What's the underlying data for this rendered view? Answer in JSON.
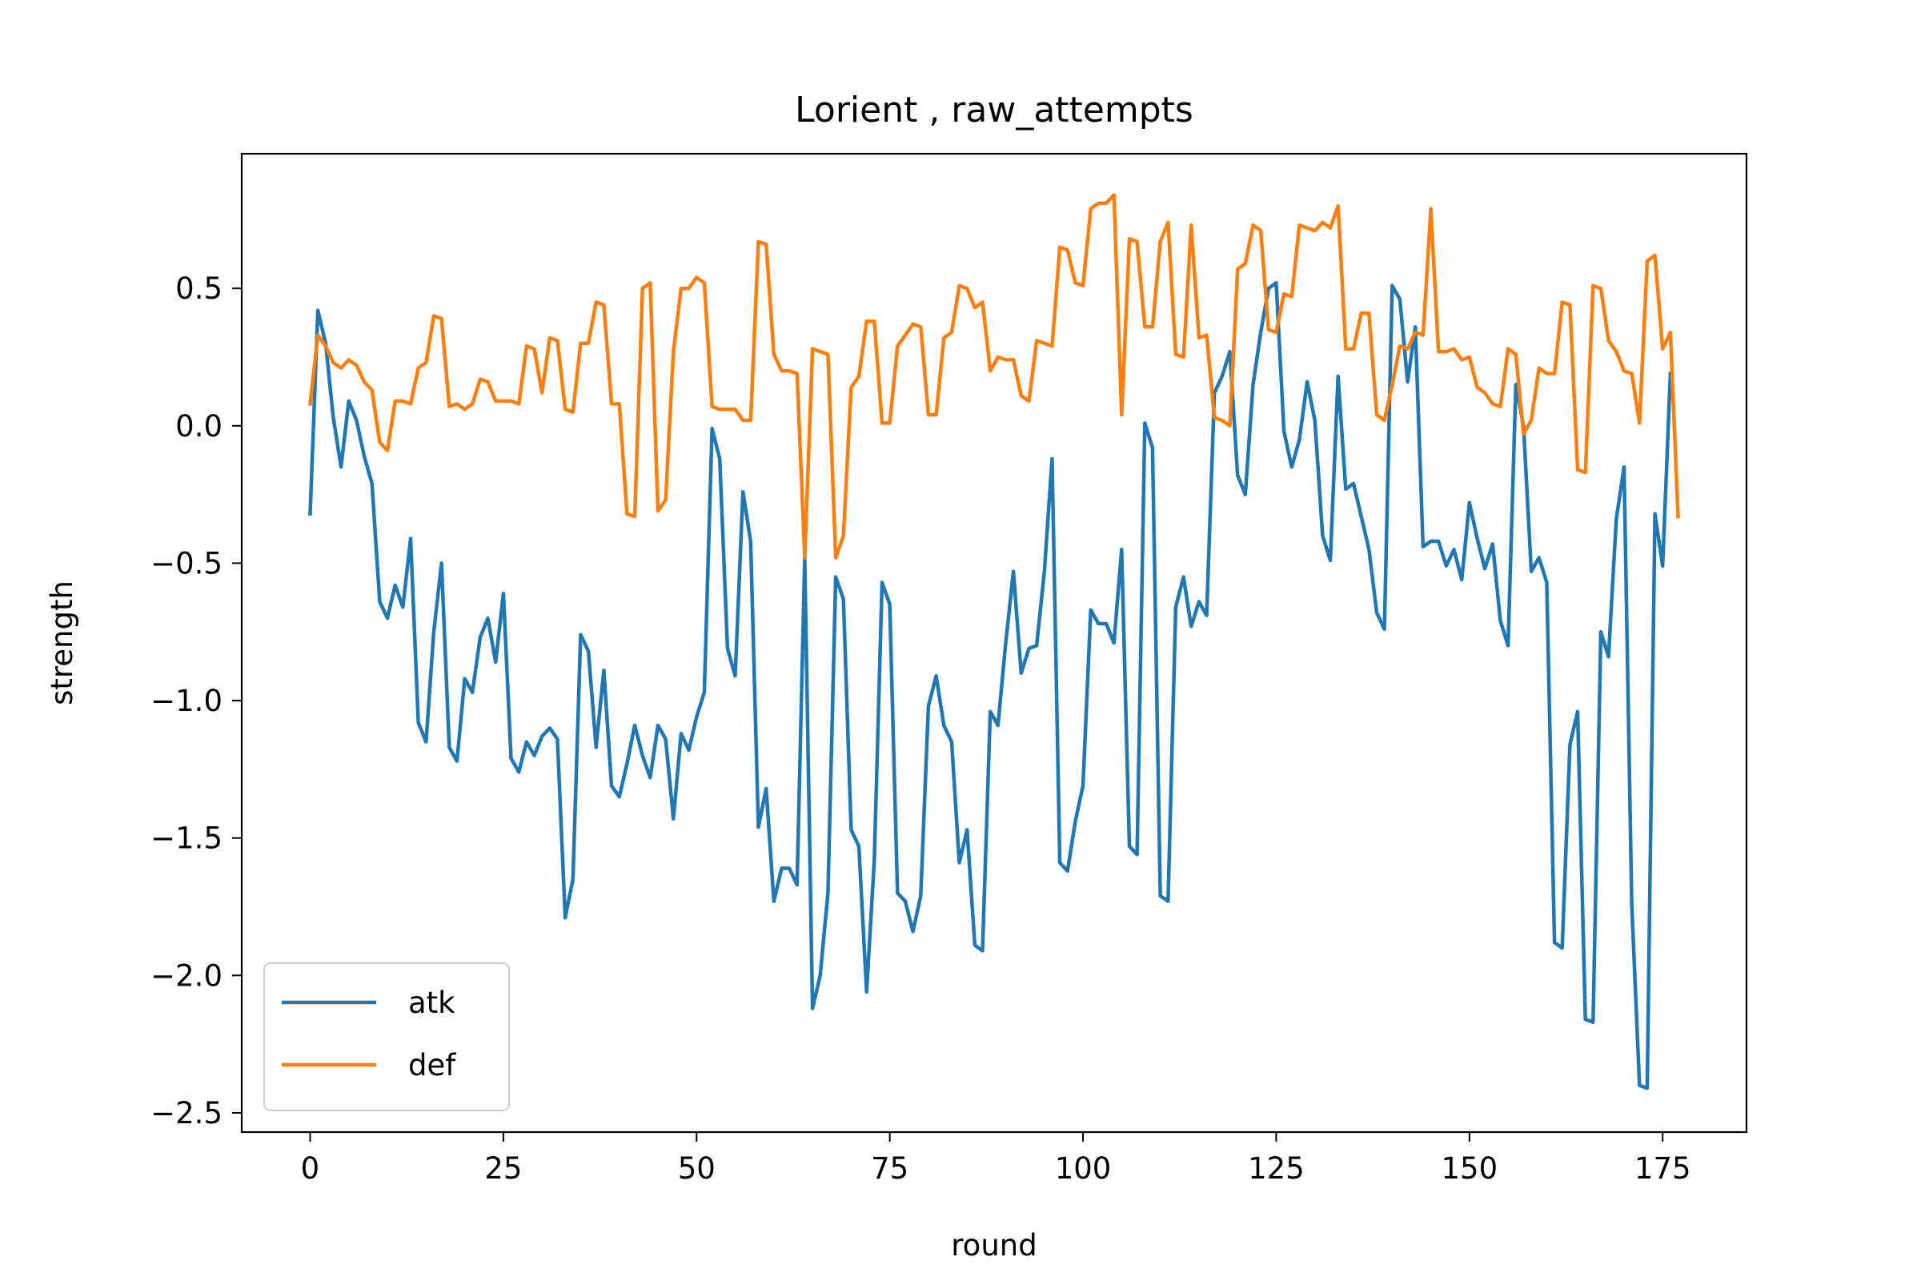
{
  "chart_data": {
    "type": "line",
    "title": "Lorient , raw_attempts",
    "xlabel": "round",
    "ylabel": "strength",
    "xlim": [
      -8.85,
      185.85
    ],
    "ylim": [
      -2.57,
      0.99
    ],
    "xticks": [
      0,
      25,
      50,
      75,
      100,
      125,
      150,
      175
    ],
    "yticks": [
      0.5,
      0.0,
      -0.5,
      -1.0,
      -1.5,
      -2.0,
      -2.5
    ],
    "grid": false,
    "legend": "lower-left",
    "series": [
      {
        "name": "atk",
        "color": "#1f77b4",
        "values": [
          -0.32,
          0.42,
          0.3,
          0.03,
          -0.15,
          0.09,
          0.02,
          -0.11,
          -0.21,
          -0.64,
          -0.7,
          -0.58,
          -0.66,
          -0.41,
          -1.08,
          -1.15,
          -0.75,
          -0.5,
          -1.17,
          -1.22,
          -0.92,
          -0.97,
          -0.77,
          -0.7,
          -0.86,
          -0.61,
          -1.21,
          -1.26,
          -1.15,
          -1.2,
          -1.13,
          -1.1,
          -1.14,
          -1.79,
          -1.65,
          -0.76,
          -0.82,
          -1.17,
          -0.89,
          -1.31,
          -1.35,
          -1.23,
          -1.09,
          -1.2,
          -1.28,
          -1.09,
          -1.14,
          -1.43,
          -1.12,
          -1.18,
          -1.06,
          -0.97,
          -0.01,
          -0.12,
          -0.81,
          -0.91,
          -0.24,
          -0.42,
          -1.46,
          -1.32,
          -1.73,
          -1.61,
          -1.61,
          -1.67,
          -0.48,
          -2.12,
          -2.0,
          -1.7,
          -0.55,
          -0.63,
          -1.47,
          -1.53,
          -2.06,
          -1.58,
          -0.57,
          -0.65,
          -1.7,
          -1.73,
          -1.84,
          -1.71,
          -1.02,
          -0.91,
          -1.09,
          -1.15,
          -1.59,
          -1.47,
          -1.89,
          -1.91,
          -1.04,
          -1.09,
          -0.79,
          -0.53,
          -0.9,
          -0.81,
          -0.8,
          -0.53,
          -0.12,
          -1.59,
          -1.62,
          -1.44,
          -1.31,
          -0.67,
          -0.72,
          -0.72,
          -0.79,
          -0.45,
          -1.53,
          -1.56,
          0.01,
          -0.08,
          -1.71,
          -1.73,
          -0.66,
          -0.55,
          -0.73,
          -0.64,
          -0.69,
          0.12,
          0.18,
          0.27,
          -0.18,
          -0.25,
          0.15,
          0.34,
          0.5,
          0.52,
          -0.02,
          -0.15,
          -0.05,
          0.16,
          0.02,
          -0.4,
          -0.49,
          0.18,
          -0.23,
          -0.21,
          -0.33,
          -0.45,
          -0.68,
          -0.74,
          0.51,
          0.46,
          0.16,
          0.36,
          -0.44,
          -0.42,
          -0.42,
          -0.51,
          -0.45,
          -0.56,
          -0.28,
          -0.41,
          -0.52,
          -0.43,
          -0.71,
          -0.8,
          0.15,
          0.0,
          -0.53,
          -0.48,
          -0.57,
          -1.88,
          -1.9,
          -1.16,
          -1.04,
          -2.16,
          -2.17,
          -0.75,
          -0.84,
          -0.34,
          -0.15,
          -1.74,
          -2.4,
          -2.41,
          -0.32,
          -0.51,
          0.19
        ]
      },
      {
        "name": "def",
        "color": "#ff7f0e",
        "values": [
          0.08,
          0.33,
          0.29,
          0.23,
          0.21,
          0.24,
          0.22,
          0.16,
          0.13,
          -0.06,
          -0.09,
          0.09,
          0.09,
          0.08,
          0.21,
          0.23,
          0.4,
          0.39,
          0.07,
          0.08,
          0.06,
          0.08,
          0.17,
          0.16,
          0.09,
          0.09,
          0.09,
          0.08,
          0.29,
          0.28,
          0.12,
          0.32,
          0.31,
          0.06,
          0.05,
          0.3,
          0.3,
          0.45,
          0.44,
          0.08,
          0.08,
          -0.32,
          -0.33,
          0.5,
          0.52,
          -0.31,
          -0.27,
          0.27,
          0.5,
          0.5,
          0.54,
          0.52,
          0.07,
          0.06,
          0.06,
          0.06,
          0.02,
          0.02,
          0.67,
          0.66,
          0.26,
          0.2,
          0.2,
          0.19,
          -0.48,
          0.28,
          0.27,
          0.26,
          -0.48,
          -0.4,
          0.14,
          0.18,
          0.38,
          0.38,
          0.01,
          0.01,
          0.29,
          0.33,
          0.37,
          0.36,
          0.04,
          0.04,
          0.32,
          0.34,
          0.51,
          0.5,
          0.43,
          0.45,
          0.2,
          0.25,
          0.24,
          0.24,
          0.11,
          0.09,
          0.31,
          0.3,
          0.29,
          0.65,
          0.64,
          0.52,
          0.51,
          0.79,
          0.81,
          0.81,
          0.84,
          0.04,
          0.68,
          0.67,
          0.36,
          0.36,
          0.67,
          0.74,
          0.26,
          0.25,
          0.73,
          0.32,
          0.33,
          0.03,
          0.02,
          0.0,
          0.57,
          0.59,
          0.73,
          0.71,
          0.35,
          0.34,
          0.48,
          0.47,
          0.73,
          0.72,
          0.71,
          0.74,
          0.72,
          0.8,
          0.28,
          0.28,
          0.41,
          0.41,
          0.04,
          0.02,
          0.15,
          0.29,
          0.28,
          0.34,
          0.33,
          0.79,
          0.27,
          0.27,
          0.28,
          0.24,
          0.25,
          0.14,
          0.12,
          0.08,
          0.07,
          0.28,
          0.26,
          -0.03,
          0.02,
          0.21,
          0.19,
          0.19,
          0.45,
          0.44,
          -0.16,
          -0.17,
          0.51,
          0.5,
          0.31,
          0.27,
          0.2,
          0.19,
          0.01,
          0.6,
          0.62,
          0.28,
          0.34,
          -0.33
        ]
      }
    ]
  }
}
